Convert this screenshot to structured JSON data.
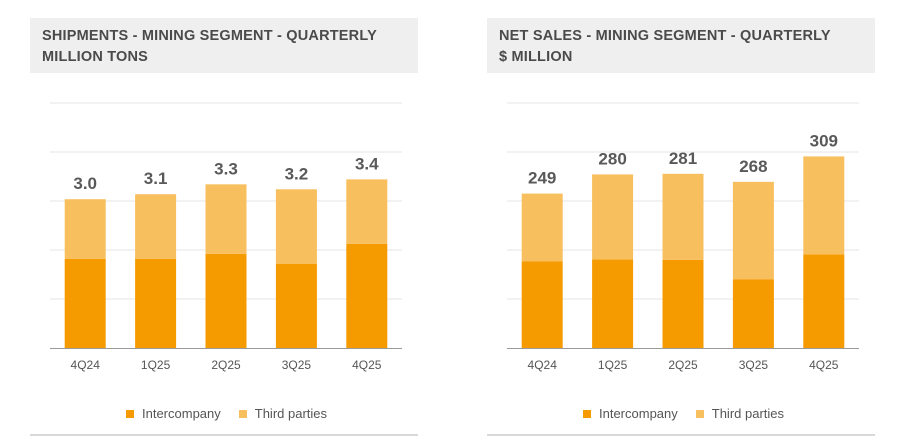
{
  "colors": {
    "intercompany": "#F59B00",
    "third_parties": "#F8BF5E",
    "grid": "#e6e6e6",
    "axis": "#9a9a9a",
    "label": "#555555"
  },
  "chart_data": [
    {
      "type": "bar",
      "stacked": true,
      "title": "SHIPMENTS - MINING SEGMENT - QUARTERLY",
      "subtitle": "MILLION TONS",
      "categories": [
        "4Q24",
        "1Q25",
        "2Q25",
        "3Q25",
        "4Q25"
      ],
      "series": [
        {
          "name": "Intercompany",
          "values": [
            1.8,
            1.8,
            1.9,
            1.7,
            2.1
          ]
        },
        {
          "name": "Third parties",
          "values": [
            1.2,
            1.3,
            1.4,
            1.5,
            1.3
          ]
        }
      ],
      "totals": [
        "3.0",
        "3.1",
        "3.3",
        "3.2",
        "3.4"
      ],
      "ylim": [
        0,
        5.0
      ],
      "grid": true,
      "legend": "bottom-center"
    },
    {
      "type": "bar",
      "stacked": true,
      "title": "NET SALES - MINING SEGMENT - QUARTERLY",
      "subtitle": "$ MILLION",
      "categories": [
        "4Q24",
        "1Q25",
        "2Q25",
        "3Q25",
        "4Q25"
      ],
      "series": [
        {
          "name": "Intercompany",
          "values": [
            140,
            143,
            142,
            111,
            151
          ]
        },
        {
          "name": "Third parties",
          "values": [
            109,
            137,
            139,
            157,
            158
          ]
        }
      ],
      "totals": [
        "249",
        "280",
        "281",
        "268",
        "309"
      ],
      "ylim": [
        0,
        400
      ],
      "grid": true,
      "legend": "bottom-center"
    }
  ]
}
